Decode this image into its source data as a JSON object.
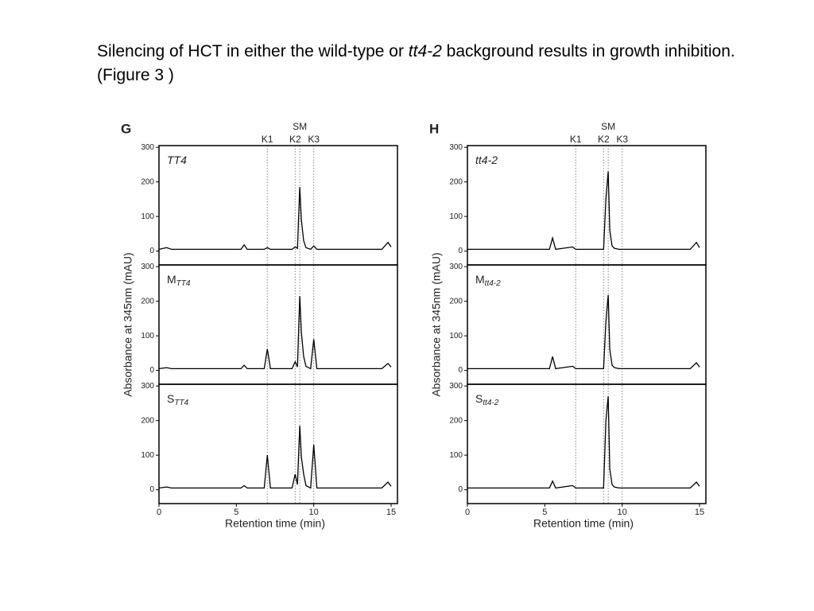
{
  "slide": {
    "title": {
      "before": "Silencing of HCT in either the wild-type or ",
      "italic": "tt4-2",
      "after": " background results in growth inhibition.  (Figure 3 )"
    }
  },
  "chart_data": [
    {
      "type": "line",
      "panel_letter": "G",
      "ylabel": "Absorbance at 345nm (mAU)",
      "xlabel": "Retention time (min)",
      "xlim": [
        0,
        15
      ],
      "xticks": [
        0,
        5,
        10,
        15
      ],
      "ylim": [
        -40,
        305
      ],
      "yticks": [
        0,
        100,
        200,
        300
      ],
      "color": "#000000",
      "markers": [
        {
          "label": "K1",
          "x": 7
        },
        {
          "label": "K2",
          "x": 8.8
        },
        {
          "label": "SM",
          "x": 9.1
        },
        {
          "label": "K3",
          "x": 10
        }
      ],
      "x": [
        0,
        0.5,
        0.8,
        3,
        5.3,
        5.5,
        5.7,
        6.8,
        7,
        7.2,
        8.6,
        8.8,
        8.95,
        9.1,
        9.2,
        9.35,
        9.5,
        9.8,
        10,
        10.2,
        12,
        14.4,
        14.8,
        15
      ],
      "panels": [
        {
          "label": "TT4",
          "values": [
            5,
            10,
            5,
            5,
            5,
            18,
            5,
            5,
            10,
            5,
            5,
            12,
            8,
            185,
            90,
            30,
            10,
            5,
            15,
            5,
            5,
            5,
            25,
            12
          ]
        },
        {
          "label": "M",
          "label_sub": "TT4",
          "values": [
            5,
            8,
            5,
            5,
            5,
            15,
            5,
            5,
            62,
            5,
            5,
            25,
            10,
            215,
            110,
            40,
            12,
            5,
            90,
            5,
            5,
            5,
            20,
            10
          ]
        },
        {
          "label": "S",
          "label_sub": "TT4",
          "values": [
            5,
            8,
            5,
            5,
            5,
            12,
            5,
            5,
            100,
            5,
            5,
            45,
            15,
            185,
            95,
            45,
            12,
            5,
            130,
            5,
            5,
            5,
            22,
            10
          ]
        }
      ]
    },
    {
      "type": "line",
      "panel_letter": "H",
      "ylabel": "Absorbance at 345nm (mAU)",
      "xlabel": "Retention time (min)",
      "xlim": [
        0,
        15
      ],
      "xticks": [
        0,
        5,
        10,
        15
      ],
      "ylim": [
        -40,
        305
      ],
      "yticks": [
        0,
        100,
        200,
        300
      ],
      "color": "#000000",
      "markers": [
        {
          "label": "K1",
          "x": 7
        },
        {
          "label": "K2",
          "x": 8.8
        },
        {
          "label": "SM",
          "x": 9.1
        },
        {
          "label": "K3",
          "x": 10
        }
      ],
      "x": [
        0,
        0.5,
        0.8,
        3,
        5.3,
        5.5,
        5.7,
        6.8,
        7,
        7.2,
        8.6,
        8.8,
        8.95,
        9.1,
        9.2,
        9.35,
        9.5,
        9.8,
        10,
        10.2,
        12,
        14.4,
        14.8,
        15
      ],
      "panels": [
        {
          "label": "tt4-2",
          "values": [
            5,
            5,
            5,
            5,
            5,
            38,
            5,
            12,
            5,
            5,
            5,
            5,
            150,
            230,
            60,
            15,
            8,
            5,
            5,
            5,
            5,
            5,
            25,
            10
          ]
        },
        {
          "label": "M",
          "label_sub": "tt4-2",
          "values": [
            5,
            5,
            5,
            5,
            5,
            40,
            5,
            12,
            5,
            5,
            5,
            5,
            140,
            218,
            60,
            15,
            8,
            5,
            5,
            5,
            5,
            5,
            22,
            10
          ]
        },
        {
          "label": "S",
          "label_sub": "tt4-2",
          "values": [
            5,
            5,
            5,
            5,
            5,
            25,
            5,
            12,
            5,
            5,
            5,
            5,
            200,
            270,
            60,
            15,
            8,
            5,
            5,
            5,
            5,
            5,
            22,
            10
          ]
        }
      ]
    }
  ]
}
